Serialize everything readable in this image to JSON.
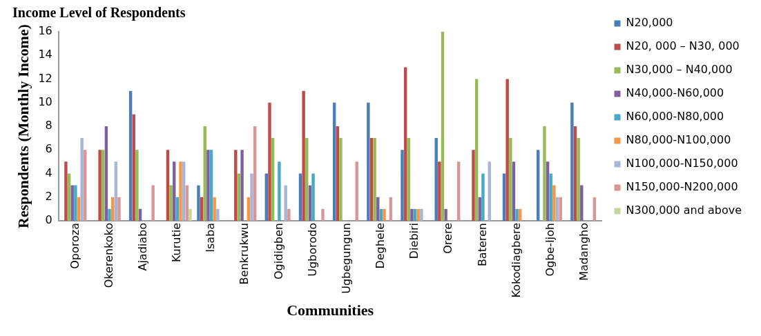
{
  "chart_data": {
    "type": "bar",
    "title": "Income Level of Respondents",
    "xlabel": "Communities",
    "ylabel": "Respondents (Monthly Income)",
    "categories": [
      "Oporoza",
      "Okerenkoko",
      "Ajadiabo",
      "Kurutie",
      "Isaba",
      "Benkrukwu",
      "Ogidigben",
      "Ugborodo",
      "Ugbegungun",
      "Deghele",
      "Diebiri",
      "Orere",
      "Bateren",
      "Kokodiagbere",
      "Ogbe-Ijoh",
      "Madangho"
    ],
    "series": [
      {
        "name": "N20,000",
        "color": "#4a7ebb",
        "values": [
          0,
          0,
          11,
          0,
          3,
          0,
          4,
          4,
          10,
          10,
          6,
          7,
          0,
          4,
          6,
          10
        ]
      },
      {
        "name": "N20, 000 – N30, 000",
        "color": "#be4b48",
        "values": [
          5,
          6,
          9,
          6,
          2,
          6,
          10,
          11,
          8,
          7,
          13,
          5,
          6,
          12,
          0,
          8
        ]
      },
      {
        "name": "N30,000 – N40,000",
        "color": "#98b954",
        "values": [
          4,
          6,
          6,
          3,
          8,
          4,
          7,
          7,
          7,
          7,
          7,
          16,
          12,
          7,
          8,
          7
        ]
      },
      {
        "name": "N40,000-N60,000",
        "color": "#7d60a0",
        "values": [
          3,
          8,
          1,
          5,
          6,
          6,
          0,
          3,
          0,
          2,
          1,
          1,
          2,
          5,
          5,
          3
        ]
      },
      {
        "name": "N60,000-N80,000",
        "color": "#46aac5",
        "values": [
          3,
          1,
          0,
          2,
          6,
          0,
          5,
          4,
          0,
          1,
          1,
          0,
          4,
          1,
          4,
          0
        ]
      },
      {
        "name": "N80,000-N100,000",
        "color": "#f79646",
        "values": [
          2,
          2,
          0,
          5,
          2,
          2,
          0,
          0,
          0,
          1,
          1,
          0,
          0,
          1,
          3,
          0
        ]
      },
      {
        "name": "N100,000-N150,000",
        "color": "#a5b6d9",
        "values": [
          7,
          5,
          0,
          5,
          1,
          4,
          3,
          0,
          0,
          0,
          1,
          0,
          5,
          0,
          2,
          0
        ]
      },
      {
        "name": "N150,000-N200,000",
        "color": "#d99694",
        "values": [
          6,
          2,
          3,
          3,
          0,
          8,
          1,
          1,
          5,
          2,
          0,
          5,
          0,
          0,
          2,
          2
        ]
      },
      {
        "name": "N300,000 and above",
        "color": "#c3d69b",
        "values": [
          0,
          0,
          0,
          1,
          0,
          0,
          0,
          0,
          0,
          0,
          0,
          0,
          0,
          0,
          0,
          0
        ]
      }
    ],
    "ylim": [
      0,
      16
    ],
    "yticks": [
      0,
      2,
      4,
      6,
      8,
      10,
      12,
      14,
      16
    ],
    "grid": false,
    "legend": "right"
  }
}
